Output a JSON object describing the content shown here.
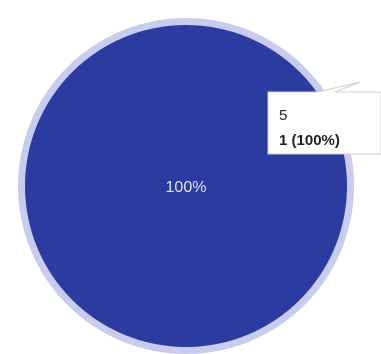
{
  "chart_data": {
    "type": "pie",
    "categories": [
      "5"
    ],
    "values": [
      100
    ],
    "value_labels": [
      "100%"
    ],
    "counts": [
      1
    ],
    "count_labels": [
      "1 (100%)"
    ],
    "colors": [
      "#2b3b9f"
    ],
    "tooltip_index": 0
  }
}
